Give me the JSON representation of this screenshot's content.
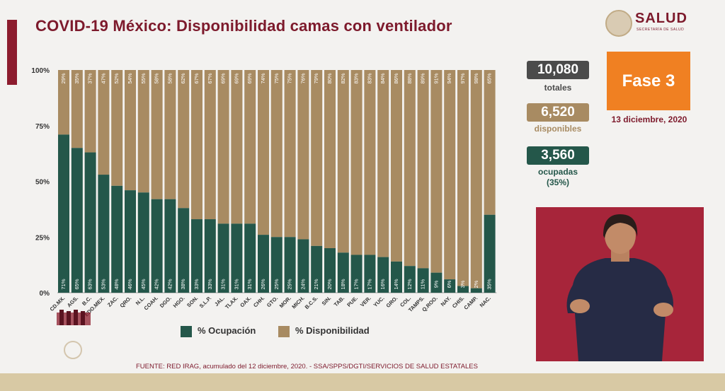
{
  "title": "COVID-19 México: Disponibilidad camas con ventilador",
  "logo": {
    "name": "SALUD",
    "subtitle": "SECRETARÍA DE SALUD"
  },
  "stats": {
    "total_value": "10,080",
    "total_label": "totales",
    "available_value": "6,520",
    "available_label": "disponibles",
    "occupied_value": "3,560",
    "occupied_label": "ocupadas",
    "occupied_pct": "(35%)"
  },
  "phase": {
    "label": "Fase 3",
    "date": "13 diciembre, 2020"
  },
  "legend": {
    "occupied": "% Ocupación",
    "available": "% Disponibilidad"
  },
  "footer": "FUENTE: RED IRAG, acumulado del 12 diciembre, 2020. - SSA/SPPS/DGTI/SERVICIOS DE SALUD ESTATALES",
  "colors": {
    "occupied": "#24574a",
    "available": "#a88b62",
    "accent": "#7d1a2c",
    "phase": "#f08022"
  },
  "chart_data": {
    "type": "bar",
    "stacked": true,
    "categories": [
      "CD.MX.",
      "AGS.",
      "B.C.",
      "EDO.MEX.",
      "ZAC.",
      "QRO.",
      "N.L.",
      "COAH.",
      "DGO.",
      "HGO.",
      "SON.",
      "S.L.P.",
      "JAL.",
      "TLAX.",
      "OAX.",
      "CHH.",
      "GTO.",
      "MOR.",
      "MICH.",
      "B.C.S.",
      "SIN.",
      "TAB.",
      "PUE.",
      "VER.",
      "YUC.",
      "GRO.",
      "COL.",
      "TAMPS.",
      "Q.ROO.",
      "NAY.",
      "CHIS.",
      "CAMP.",
      "NAC."
    ],
    "series": [
      {
        "name": "% Ocupación",
        "values": [
          71,
          65,
          63,
          53,
          48,
          46,
          45,
          42,
          42,
          38,
          33,
          33,
          31,
          31,
          31,
          26,
          25,
          25,
          24,
          21,
          20,
          18,
          17,
          17,
          16,
          14,
          12,
          11,
          9,
          6,
          3,
          2,
          35
        ]
      },
      {
        "name": "% Disponibilidad",
        "values": [
          29,
          35,
          37,
          47,
          52,
          54,
          55,
          58,
          58,
          62,
          67,
          67,
          69,
          69,
          69,
          74,
          75,
          75,
          76,
          79,
          80,
          82,
          83,
          83,
          84,
          86,
          88,
          89,
          91,
          94,
          97,
          98,
          65
        ]
      }
    ],
    "yticks": [
      "0%",
      "25%",
      "50%",
      "75%",
      "100%"
    ],
    "ylim": [
      0,
      100
    ],
    "legend_position": "bottom"
  }
}
